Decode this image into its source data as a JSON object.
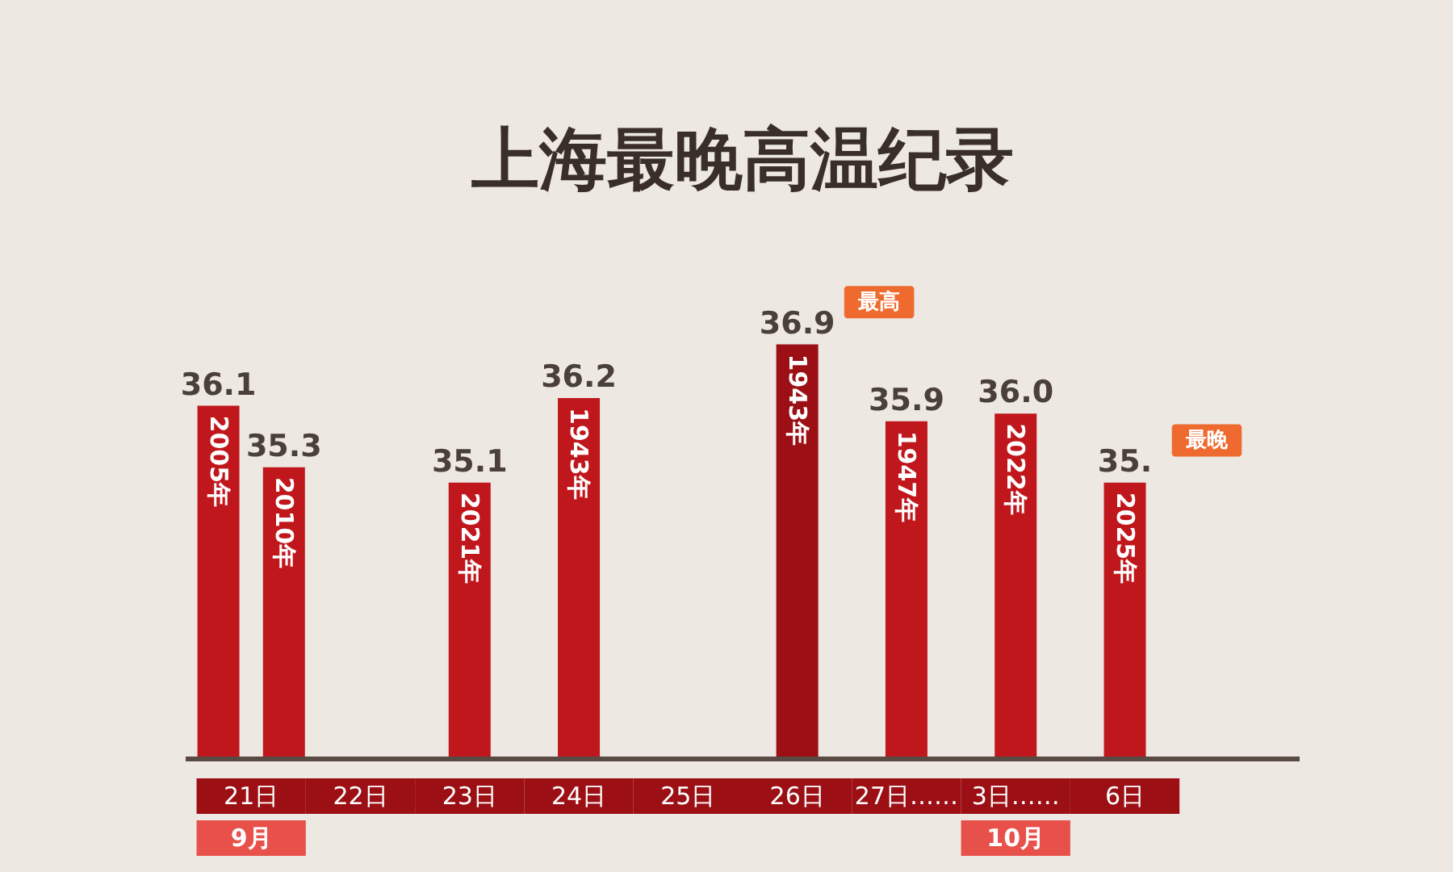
{
  "chart_data": {
    "type": "bar",
    "title": "上海最晚高温纪录",
    "categories": [
      "21日",
      "22日",
      "23日",
      "24日",
      "25日",
      "26日",
      "27日……",
      "3日……",
      "6日",
      null
    ],
    "series": [
      {
        "values": [
          36.1,
          null,
          35.1,
          36.2,
          null,
          36.9,
          35.9,
          36.0,
          35.1,
          null
        ],
        "value_labels": [
          "36.1",
          null,
          "35.1",
          "36.2",
          null,
          "36.9",
          "35.9",
          "36.0",
          "35.",
          null
        ],
        "colors": [
          "#c0171d",
          null,
          "#c0171d",
          "#c0171d",
          null,
          "#9c0f14",
          "#c0171d",
          "#c0171d",
          "#c0171d",
          null
        ]
      },
      {
        "values": [
          35.3,
          null,
          null,
          null,
          null,
          null,
          null,
          null,
          null,
          null
        ],
        "value_labels": [
          "35.3",
          null,
          null,
          null,
          null,
          null,
          null,
          null,
          null,
          null
        ],
        "color": "#c0171d"
      }
    ],
    "annotations": [
      "2005年",
      "2010年",
      {
        "text": "2021年",
        "x": "23日",
        "y": 35.1
      },
      {
        "text": "1943年",
        "x": "24日",
        "y": 36.2
      },
      {
        "text": "1943年",
        "x": "26日",
        "y": 36.9
      },
      {
        "text": "1947年",
        "x": "27日……",
        "y": 35.9
      },
      {
        "text": "2022年",
        "x": "3日……",
        "y": 36.0
      },
      {
        "text": "2025年",
        "x": "6日",
        "y": 35.1
      },
      "最高",
      "最晚",
      "9月",
      "10月"
    ],
    "ylim": [
      31.5,
      37.6
    ],
    "tick_labels": "x"
  }
}
